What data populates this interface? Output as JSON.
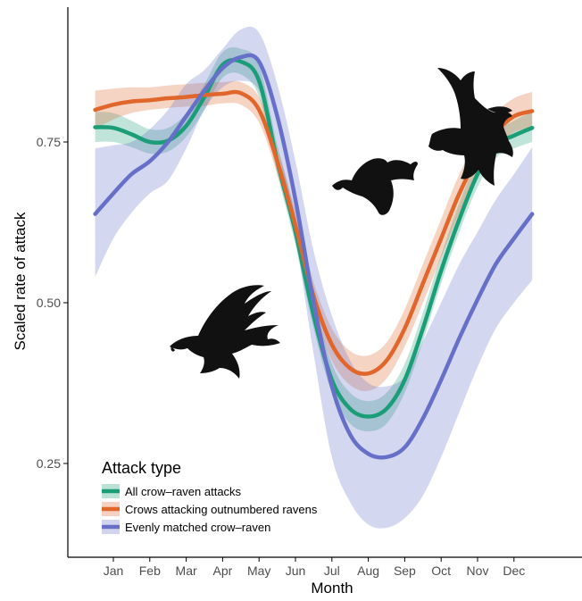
{
  "chart_data": {
    "type": "line",
    "title": "",
    "xlabel": "Month",
    "ylabel": "Scaled rate of attack",
    "categories": [
      "Jan",
      "Feb",
      "Mar",
      "Apr",
      "May",
      "Jun",
      "Jul",
      "Aug",
      "Sep",
      "Oct",
      "Nov",
      "Dec"
    ],
    "x_range": [
      0.5,
      12.5
    ],
    "ylim": [
      0.125,
      0.95
    ],
    "yticks": [
      0.25,
      0.5,
      0.75
    ],
    "ytick_labels": [
      "0.25",
      "0.50",
      "0.75"
    ],
    "grid": false,
    "legend": {
      "title": "Attack type",
      "position": "bottom-left"
    },
    "series": [
      {
        "name": "All crow–raven attacks",
        "color": "#1b9e77",
        "x": [
          0.5,
          1.0,
          1.5,
          2.0,
          2.5,
          3.0,
          3.5,
          4.0,
          4.5,
          5.0,
          5.5,
          6.0,
          6.5,
          7.0,
          7.5,
          8.0,
          8.5,
          9.0,
          9.5,
          10.0,
          10.5,
          11.0,
          11.5,
          12.0,
          12.5
        ],
        "values": [
          0.773,
          0.772,
          0.762,
          0.75,
          0.752,
          0.775,
          0.82,
          0.87,
          0.875,
          0.845,
          0.72,
          0.61,
          0.48,
          0.38,
          0.335,
          0.323,
          0.335,
          0.38,
          0.46,
          0.55,
          0.63,
          0.7,
          0.745,
          0.76,
          0.772
        ],
        "lower": [
          0.75,
          0.75,
          0.742,
          0.732,
          0.735,
          0.758,
          0.8,
          0.85,
          0.855,
          0.82,
          0.7,
          0.59,
          0.46,
          0.36,
          0.312,
          0.3,
          0.312,
          0.36,
          0.44,
          0.53,
          0.61,
          0.68,
          0.725,
          0.74,
          0.75
        ],
        "upper": [
          0.797,
          0.795,
          0.783,
          0.77,
          0.772,
          0.795,
          0.84,
          0.89,
          0.895,
          0.87,
          0.745,
          0.635,
          0.505,
          0.405,
          0.36,
          0.347,
          0.36,
          0.405,
          0.485,
          0.575,
          0.655,
          0.722,
          0.765,
          0.783,
          0.797
        ]
      },
      {
        "name": "Crows attacking outnumbered ravens",
        "color": "#e0662b",
        "x": [
          0.5,
          1.0,
          1.5,
          2.0,
          2.5,
          3.0,
          3.5,
          4.0,
          4.5,
          5.0,
          5.5,
          6.0,
          6.5,
          7.0,
          7.5,
          8.0,
          8.5,
          9.0,
          9.5,
          10.0,
          10.5,
          11.0,
          11.5,
          12.0,
          12.5
        ],
        "values": [
          0.8,
          0.808,
          0.813,
          0.815,
          0.818,
          0.82,
          0.823,
          0.825,
          0.826,
          0.8,
          0.72,
          0.62,
          0.51,
          0.435,
          0.398,
          0.39,
          0.41,
          0.46,
          0.53,
          0.6,
          0.67,
          0.725,
          0.765,
          0.79,
          0.798
        ],
        "lower": [
          0.77,
          0.785,
          0.795,
          0.8,
          0.803,
          0.805,
          0.806,
          0.81,
          0.808,
          0.78,
          0.7,
          0.6,
          0.49,
          0.41,
          0.372,
          0.363,
          0.382,
          0.432,
          0.5,
          0.57,
          0.64,
          0.7,
          0.74,
          0.765,
          0.772
        ],
        "upper": [
          0.83,
          0.833,
          0.835,
          0.835,
          0.838,
          0.84,
          0.842,
          0.843,
          0.843,
          0.82,
          0.742,
          0.642,
          0.532,
          0.46,
          0.425,
          0.418,
          0.438,
          0.49,
          0.56,
          0.63,
          0.7,
          0.752,
          0.795,
          0.818,
          0.828
        ]
      },
      {
        "name": "Evenly matched crow–raven",
        "color": "#6670c8",
        "x": [
          0.5,
          1.0,
          1.5,
          2.0,
          2.5,
          3.0,
          3.5,
          4.0,
          4.5,
          5.0,
          5.5,
          6.0,
          6.5,
          7.0,
          7.5,
          8.0,
          8.5,
          9.0,
          9.5,
          10.0,
          10.5,
          11.0,
          11.5,
          12.0,
          12.5
        ],
        "values": [
          0.638,
          0.67,
          0.7,
          0.72,
          0.75,
          0.79,
          0.83,
          0.865,
          0.882,
          0.875,
          0.79,
          0.66,
          0.5,
          0.37,
          0.295,
          0.265,
          0.26,
          0.275,
          0.32,
          0.38,
          0.445,
          0.505,
          0.56,
          0.6,
          0.638
        ],
        "lower": [
          0.54,
          0.6,
          0.64,
          0.67,
          0.69,
          0.74,
          0.8,
          0.835,
          0.845,
          0.83,
          0.74,
          0.6,
          0.42,
          0.26,
          0.19,
          0.155,
          0.15,
          0.165,
          0.2,
          0.26,
          0.33,
          0.4,
          0.46,
          0.5,
          0.535
        ],
        "upper": [
          0.74,
          0.745,
          0.75,
          0.77,
          0.8,
          0.84,
          0.862,
          0.895,
          0.925,
          0.92,
          0.84,
          0.72,
          0.58,
          0.48,
          0.41,
          0.375,
          0.37,
          0.385,
          0.44,
          0.5,
          0.56,
          0.61,
          0.66,
          0.7,
          0.742
        ]
      }
    ]
  },
  "illustrations": [
    {
      "name": "raven-silhouette-left",
      "color": "#111111"
    },
    {
      "name": "raven-silhouette-center",
      "color": "#111111"
    },
    {
      "name": "raven-silhouette-right",
      "color": "#111111"
    }
  ]
}
